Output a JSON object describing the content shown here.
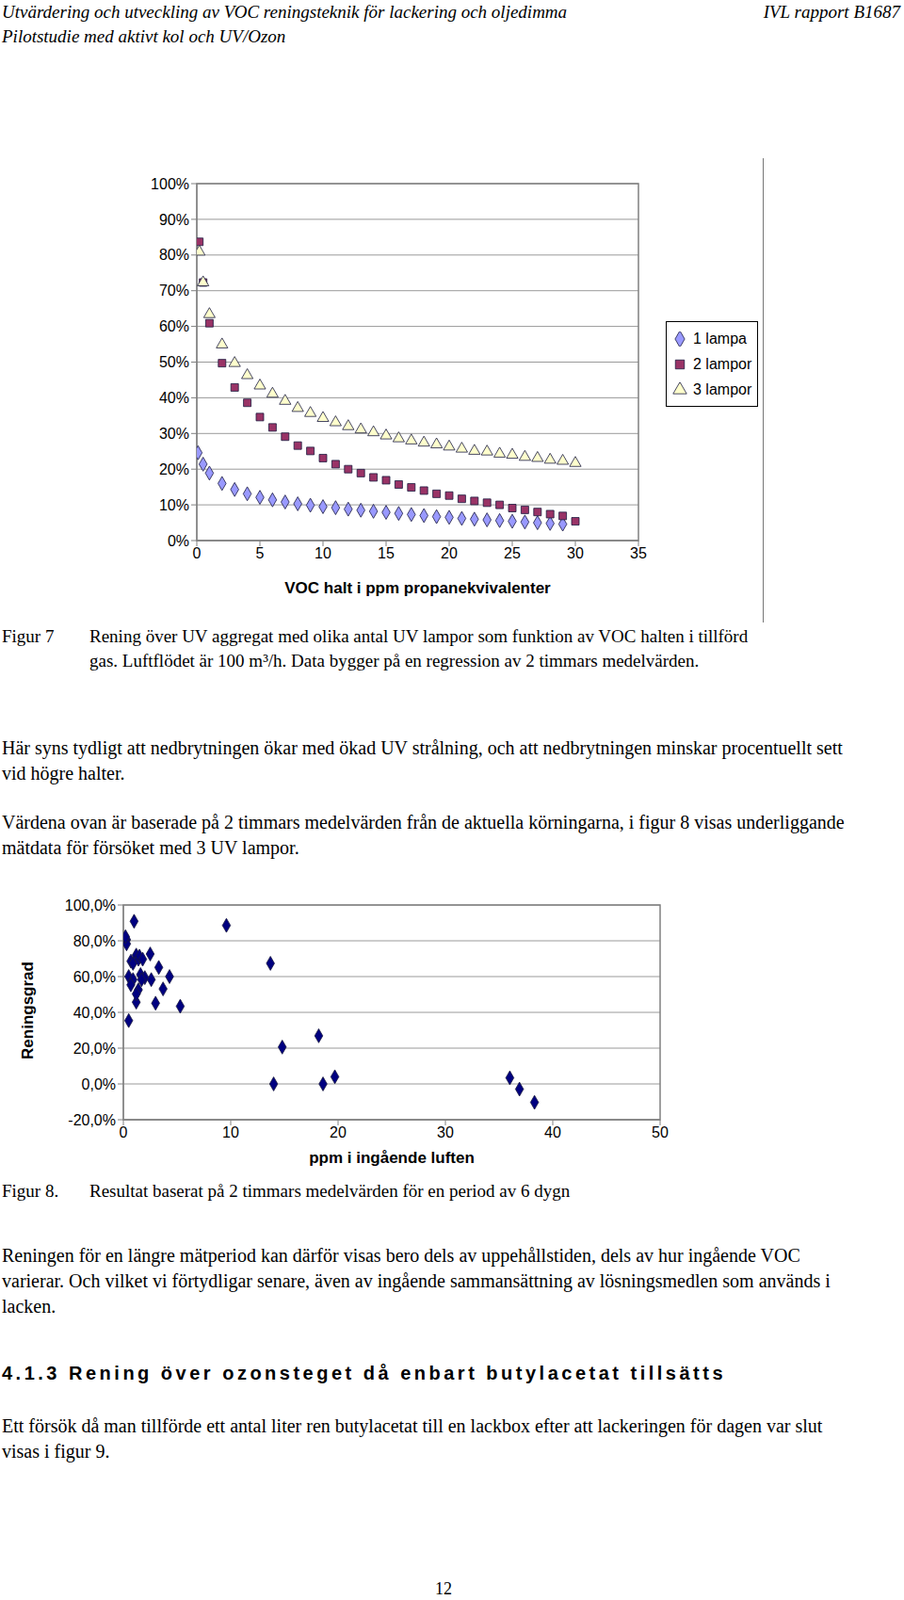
{
  "header": {
    "left": [
      "Utvärdering och utveckling av VOC reningsteknik för lackering och oljedimma",
      "Pilotstudie med aktivt kol och UV/Ozon"
    ],
    "right": "IVL rapport B1687"
  },
  "chart_data": [
    {
      "type": "scatter",
      "x_label": "VOC halt i ppm propanekvivalenter",
      "xlim": [
        0,
        35
      ],
      "xticks": [
        0,
        5,
        10,
        15,
        20,
        25,
        30,
        35
      ],
      "ylim": [
        0,
        100
      ],
      "yticks": [
        {
          "value": 0,
          "label": "0%"
        },
        {
          "value": 10,
          "label": "10%"
        },
        {
          "value": 20,
          "label": "20%"
        },
        {
          "value": 30,
          "label": "30%"
        },
        {
          "value": 40,
          "label": "40%"
        },
        {
          "value": 50,
          "label": "50%"
        },
        {
          "value": 60,
          "label": "60%"
        },
        {
          "value": 70,
          "label": "70%"
        },
        {
          "value": 80,
          "label": "80%"
        },
        {
          "value": 90,
          "label": "90%"
        },
        {
          "value": 100,
          "label": "100%"
        }
      ],
      "grid": true,
      "legend": "right",
      "series": [
        {
          "name": "1 lampa",
          "color": "#9999ff",
          "marker": "diamond",
          "x": [
            0.1,
            0.5,
            1,
            2,
            3,
            4,
            5,
            6,
            7,
            8,
            9,
            10,
            11,
            12,
            13,
            14,
            15,
            16,
            17,
            18,
            19,
            20,
            21,
            22,
            23,
            24,
            25,
            26,
            27,
            28,
            29
          ],
          "values": [
            24.6,
            21.4,
            18.9,
            16,
            14.3,
            13.1,
            12.1,
            11.4,
            10.8,
            10.3,
            9.9,
            9.5,
            9.2,
            8.8,
            8.5,
            8.2,
            7.9,
            7.6,
            7.3,
            7.0,
            6.7,
            6.5,
            6.2,
            6.0,
            5.8,
            5.6,
            5.4,
            5.2,
            5.0,
            4.8,
            4.6
          ]
        },
        {
          "name": "2 lampor",
          "color": "#993366",
          "marker": "square",
          "x": [
            0.2,
            0.5,
            1,
            2,
            3,
            4,
            5,
            6,
            7,
            8,
            9,
            10,
            11,
            12,
            13,
            14,
            15,
            16,
            17,
            18,
            19,
            20,
            21,
            22,
            23,
            24,
            25,
            26,
            27,
            28,
            29,
            30
          ],
          "values": [
            83.7,
            72.3,
            60.9,
            49.7,
            42.9,
            38.6,
            34.6,
            31.7,
            29.1,
            26.6,
            25.1,
            23.1,
            21.4,
            20,
            18.9,
            17.7,
            16.9,
            15.7,
            14.9,
            14,
            13.1,
            12.6,
            11.7,
            11.1,
            10.6,
            10,
            9.1,
            8.6,
            8,
            7.4,
            6.9,
            5.4
          ]
        },
        {
          "name": "3 lampor",
          "color": "#ffffcc",
          "marker": "triangle",
          "x": [
            0.2,
            0.5,
            1,
            2,
            3,
            4,
            5,
            6,
            7,
            8,
            9,
            10,
            11,
            12,
            13,
            14,
            15,
            16,
            17,
            18,
            19,
            20,
            21,
            22,
            23,
            24,
            25,
            26,
            27,
            28,
            29,
            30
          ],
          "values": [
            80.9,
            72.3,
            63.4,
            54.9,
            49.7,
            46.3,
            43.4,
            41.1,
            39.1,
            37.1,
            35.7,
            34.3,
            33.1,
            32,
            31.1,
            30.3,
            29.4,
            28.6,
            28,
            27.4,
            26.9,
            26.3,
            25.7,
            25.1,
            24.9,
            24.3,
            24,
            23.4,
            23.1,
            22.6,
            22.3,
            21.7
          ]
        }
      ]
    },
    {
      "type": "scatter",
      "y_label": "Reningsgrad",
      "x_label": "ppm i ingående luften",
      "xlim": [
        0,
        50
      ],
      "xticks": [
        0,
        10,
        20,
        30,
        40,
        50
      ],
      "ylim": [
        -20,
        100
      ],
      "yticks": [
        {
          "value": -20,
          "label": "-20,0%"
        },
        {
          "value": 0,
          "label": "0,0%"
        },
        {
          "value": 20,
          "label": "20,0%"
        },
        {
          "value": 40,
          "label": "40,0%"
        },
        {
          "value": 60,
          "label": "60,0%"
        },
        {
          "value": 80,
          "label": "80,0%"
        },
        {
          "value": 100,
          "label": "100,0%"
        }
      ],
      "grid": true,
      "series": [
        {
          "color": "#000080",
          "marker": "diamond",
          "x": [
            0.3,
            0.3,
            0.2,
            0.5,
            1,
            0.5,
            0.7,
            0.9,
            1.2,
            1.4,
            1.5,
            1.8,
            2.5,
            1.2,
            1.4,
            1.2,
            0.9,
            1.6,
            2,
            2.6,
            3.3,
            3.7,
            3,
            4.3,
            5.3,
            9.6,
            13.7,
            14,
            14.8,
            18.2,
            18.6,
            19.7,
            36,
            36.9,
            38.3,
            0.7,
            1.7
          ],
          "values": [
            80.6,
            78.3,
            82.3,
            35.4,
            90.9,
            60,
            68.6,
            67.4,
            72,
            69.7,
            71.4,
            69.7,
            72.6,
            45.7,
            52.6,
            50.3,
            58.3,
            61.1,
            59.4,
            58.3,
            65.1,
            53.1,
            45.1,
            60,
            43.4,
            88.6,
            67.4,
            0,
            20.6,
            26.9,
            0,
            4,
            3.4,
            -2.9,
            -10.3,
            55.4,
            58.3
          ]
        }
      ]
    }
  ],
  "figures": [
    {
      "label": "Figur 7",
      "caption": "Rening över UV aggregat med olika antal UV lampor som funktion av VOC halten i tillförd gas. Luftflödet är 100 m³/h. Data bygger på en regression av 2 timmars medelvärden."
    },
    {
      "label": "Figur 8.",
      "caption": "Resultat baserat på 2 timmars medelvärden för en period av 6 dygn"
    }
  ],
  "paragraphs": [
    "Här syns tydligt att nedbrytningen ökar med ökad UV strålning, och att nedbrytningen minskar procentuellt sett vid högre halter.",
    "Värdena ovan är baserade på 2 timmars medelvärden från de aktuella körningarna, i figur 8 visas underliggande mätdata för försöket med 3 UV lampor.",
    "Reningen för en längre mätperiod kan därför visas bero dels av uppehållstiden, dels av hur ingående VOC varierar. Och vilket vi förtydligar senare, även av ingående sammansättning av lösningsmedlen som används i lacken.",
    "Ett försök då man tillförde ett antal liter ren butylacetat till en lackbox efter att lackeringen för dagen var slut visas i figur 9."
  ],
  "heading": "4.1.3 Rening över ozonsteget då enbart butylacetat tillsätts",
  "page_number": "12"
}
